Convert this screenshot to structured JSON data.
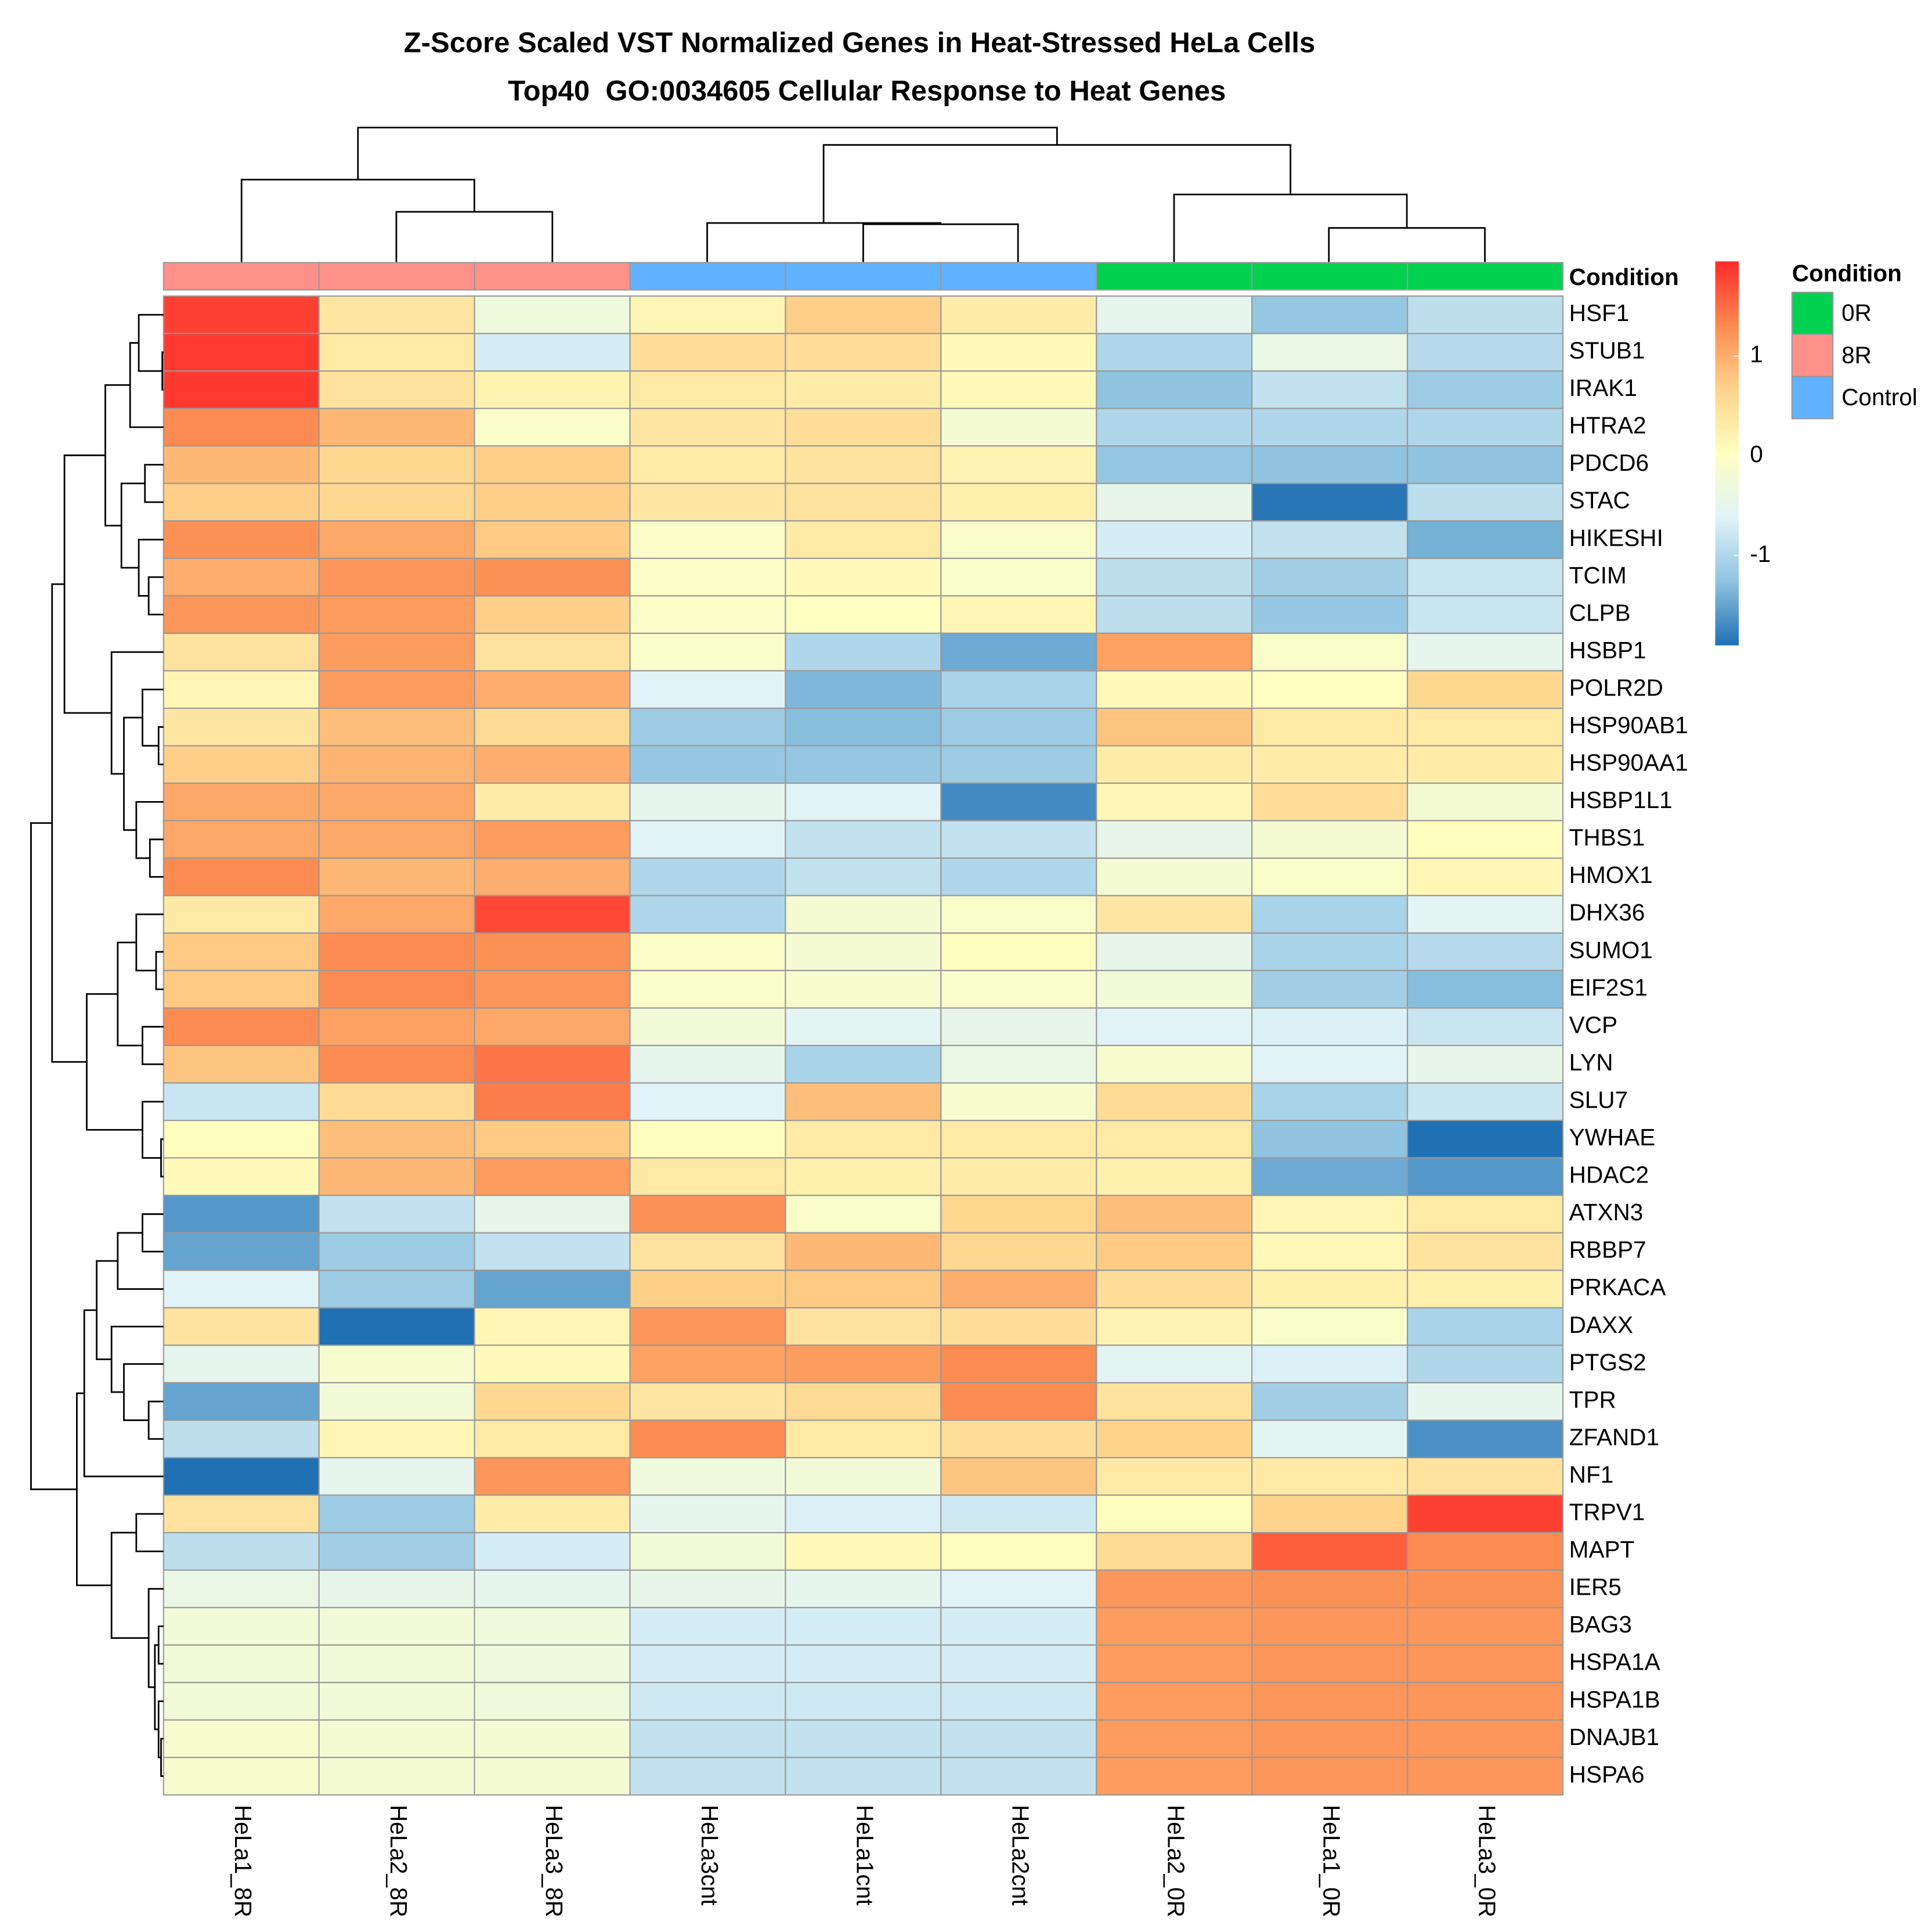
{
  "chart_data": {
    "type": "heatmap",
    "title": "Z-Score Scaled VST Normalized Genes in Heat-Stressed HeLa Cells",
    "subtitle": "Top40  GO:0034605 Cellular Response to Heat Genes",
    "columns": [
      "HeLa1_8R",
      "HeLa2_8R",
      "HeLa3_8R",
      "HeLa3cnt",
      "HeLa1cnt",
      "HeLa2cnt",
      "HeLa2_0R",
      "HeLa1_0R",
      "HeLa3_0R"
    ],
    "rows": [
      "HSF1",
      "STUB1",
      "IRAK1",
      "HTRA2",
      "PDCD6",
      "STAC",
      "HIKESHI",
      "TCIM",
      "CLPB",
      "HSBP1",
      "POLR2D",
      "HSP90AB1",
      "HSP90AA1",
      "HSBP1L1",
      "THBS1",
      "HMOX1",
      "DHX36",
      "SUMO1",
      "EIF2S1",
      "VCP",
      "LYN",
      "SLU7",
      "YWHAE",
      "HDAC2",
      "ATXN3",
      "RBBP7",
      "PRKACA",
      "DAXX",
      "PTGS2",
      "TPR",
      "ZFAND1",
      "NF1",
      "TRPV1",
      "MAPT",
      "IER5",
      "BAG3",
      "HSPA1A",
      "HSPA1B",
      "DNAJB1",
      "HSPA6"
    ],
    "values": [
      [
        1.8,
        0.4,
        -0.3,
        0.15,
        0.7,
        0.3,
        -0.5,
        -1.2,
        -0.9
      ],
      [
        1.85,
        0.35,
        -0.7,
        0.5,
        0.5,
        0.1,
        -1.0,
        -0.4,
        -0.95
      ],
      [
        1.85,
        0.45,
        0.2,
        0.35,
        0.3,
        0.1,
        -1.25,
        -0.85,
        -1.15
      ],
      [
        1.3,
        0.9,
        -0.1,
        0.4,
        0.5,
        -0.2,
        -1.0,
        -1.0,
        -1.0
      ],
      [
        0.9,
        0.6,
        0.7,
        0.35,
        0.45,
        0.2,
        -1.2,
        -1.25,
        -1.25
      ],
      [
        0.7,
        0.6,
        0.7,
        0.4,
        0.45,
        0.25,
        -0.45,
        -1.85,
        -0.9
      ],
      [
        1.25,
        1.05,
        0.75,
        -0.05,
        0.35,
        -0.1,
        -0.7,
        -0.85,
        -1.4
      ],
      [
        1.0,
        1.2,
        1.25,
        -0.05,
        0.1,
        -0.1,
        -0.9,
        -1.1,
        -0.8
      ],
      [
        1.2,
        1.15,
        0.7,
        -0.05,
        0.0,
        0.15,
        -0.9,
        -1.2,
        -0.8
      ],
      [
        0.45,
        1.15,
        0.45,
        -0.1,
        -1.0,
        -1.45,
        1.1,
        -0.1,
        -0.5
      ],
      [
        0.15,
        1.15,
        1.0,
        -0.6,
        -1.35,
        -1.05,
        0.1,
        0.0,
        0.6
      ],
      [
        0.4,
        0.85,
        0.55,
        -1.15,
        -1.3,
        -1.15,
        0.8,
        0.35,
        0.35
      ],
      [
        0.7,
        0.95,
        1.0,
        -1.2,
        -1.2,
        -1.15,
        0.3,
        0.3,
        0.3
      ],
      [
        1.05,
        1.05,
        0.3,
        -0.5,
        -0.6,
        -1.7,
        0.15,
        0.5,
        -0.2
      ],
      [
        1.05,
        1.05,
        1.15,
        -0.6,
        -0.85,
        -0.85,
        -0.45,
        -0.2,
        0.05
      ],
      [
        1.3,
        0.9,
        1.0,
        -1.0,
        -0.85,
        -1.0,
        -0.2,
        -0.1,
        0.15
      ],
      [
        0.35,
        1.05,
        1.75,
        -1.0,
        -0.2,
        -0.1,
        0.4,
        -1.05,
        -0.55
      ],
      [
        0.75,
        1.3,
        1.25,
        -0.05,
        -0.2,
        0.05,
        -0.45,
        -1.05,
        -0.95
      ],
      [
        0.75,
        1.3,
        1.2,
        -0.1,
        -0.15,
        -0.1,
        -0.25,
        -1.1,
        -1.3
      ],
      [
        1.3,
        1.1,
        1.05,
        -0.25,
        -0.55,
        -0.45,
        -0.6,
        -0.65,
        -0.8
      ],
      [
        0.8,
        1.3,
        1.45,
        -0.5,
        -1.05,
        -0.4,
        -0.15,
        -0.6,
        -0.45
      ],
      [
        -0.8,
        0.55,
        1.4,
        -0.6,
        0.85,
        -0.15,
        0.55,
        -1.05,
        -0.8
      ],
      [
        0.05,
        0.85,
        0.75,
        0.05,
        0.35,
        0.35,
        0.35,
        -1.25,
        -1.9
      ],
      [
        0.1,
        0.9,
        1.15,
        0.35,
        0.25,
        0.3,
        0.25,
        -1.45,
        -1.6
      ],
      [
        -1.6,
        -0.85,
        -0.45,
        1.25,
        -0.1,
        0.6,
        0.85,
        0.15,
        0.35
      ],
      [
        -1.5,
        -1.15,
        -0.85,
        0.45,
        0.9,
        0.6,
        0.75,
        0.1,
        0.45
      ],
      [
        -0.6,
        -1.15,
        -1.5,
        0.7,
        0.75,
        1.0,
        0.5,
        0.25,
        0.25
      ],
      [
        0.45,
        -1.9,
        0.15,
        1.2,
        0.45,
        0.5,
        0.2,
        -0.1,
        -1.05
      ],
      [
        -0.5,
        -0.15,
        0.1,
        1.1,
        1.15,
        1.3,
        -0.55,
        -0.65,
        -1.0
      ],
      [
        -1.5,
        -0.25,
        0.6,
        0.4,
        0.55,
        1.3,
        0.45,
        -1.1,
        -0.5
      ],
      [
        -0.9,
        0.15,
        0.35,
        1.3,
        0.35,
        0.5,
        0.65,
        -0.55,
        -1.65
      ],
      [
        -1.9,
        -0.5,
        1.2,
        -0.3,
        -0.25,
        0.8,
        0.35,
        0.35,
        0.45
      ],
      [
        0.45,
        -1.15,
        0.3,
        -0.5,
        -0.65,
        -0.75,
        0.05,
        0.65,
        1.8
      ],
      [
        -0.9,
        -1.1,
        -0.7,
        -0.25,
        0.1,
        0.05,
        0.55,
        1.6,
        1.3
      ],
      [
        -0.4,
        -0.45,
        -0.5,
        -0.45,
        -0.5,
        -0.6,
        1.2,
        1.25,
        1.25
      ],
      [
        -0.25,
        -0.25,
        -0.3,
        -0.7,
        -0.7,
        -0.7,
        1.15,
        1.2,
        1.2
      ],
      [
        -0.25,
        -0.25,
        -0.3,
        -0.7,
        -0.7,
        -0.7,
        1.15,
        1.2,
        1.2
      ],
      [
        -0.25,
        -0.25,
        -0.3,
        -0.75,
        -0.75,
        -0.75,
        1.15,
        1.2,
        1.2
      ],
      [
        -0.15,
        -0.2,
        -0.2,
        -0.85,
        -0.85,
        -0.85,
        1.15,
        1.2,
        1.2
      ],
      [
        -0.15,
        -0.2,
        -0.2,
        -0.85,
        -0.85,
        -0.85,
        1.15,
        1.2,
        1.2
      ]
    ],
    "zlim": [
      -1.9,
      1.95
    ],
    "zticks": [
      -1,
      0,
      1
    ],
    "colors": [
      "#2070b4",
      "#8fc3e0",
      "#e0f3f8",
      "#ffffbf",
      "#fed38c",
      "#fc8a50",
      "#ff2a2a"
    ],
    "annotation": {
      "name": "Condition",
      "values": [
        "8R",
        "8R",
        "8R",
        "Control",
        "Control",
        "Control",
        "0R",
        "0R",
        "0R"
      ],
      "levels": [
        "0R",
        "8R",
        "Control"
      ],
      "colors": [
        "#00d150",
        "#ff918a",
        "#61b3ff"
      ]
    }
  }
}
